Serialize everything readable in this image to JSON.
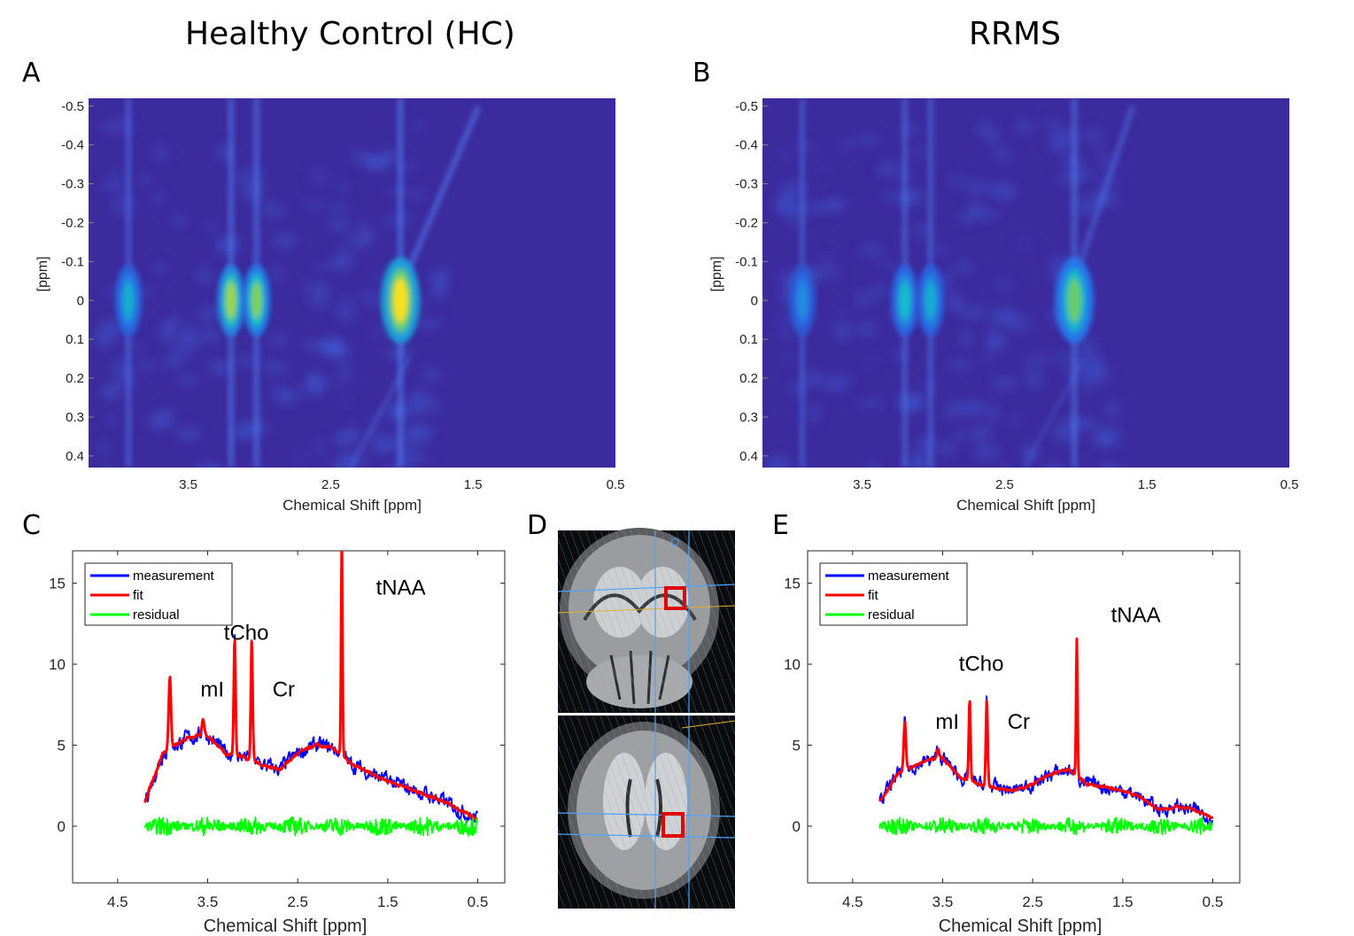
{
  "titles": {
    "left": "Healthy Control (HC)",
    "right": "RRMS"
  },
  "panels": {
    "a": "A",
    "b": "B",
    "c": "C",
    "d": "D",
    "e": "E"
  },
  "colors": {
    "map_bg": "#3c2b9d",
    "map_peak": "#f6e11c",
    "measurement": "#0000ff",
    "fit": "#ff0000",
    "residual": "#00ff00",
    "roi_box": "#e00000"
  },
  "brain_views": [
    "coronal-mri-icon",
    "axial-mri-icon"
  ],
  "chart_data": [
    {
      "type": "heatmap",
      "panel": "A",
      "xlabel": "Chemical Shift [ppm]",
      "ylabel": "[ppm]",
      "xlim": [
        4.2,
        0.5
      ],
      "ylim": [
        -0.52,
        0.43
      ],
      "xticks": [
        3.5,
        2.5,
        1.5,
        0.5
      ],
      "xtick_labels": [
        "3.5",
        "2.5",
        "1.5",
        "0.5"
      ],
      "yticks": [
        -0.5,
        -0.4,
        -0.3,
        -0.2,
        -0.1,
        0,
        0.1,
        0.2,
        0.3,
        0.4
      ],
      "ytick_labels": [
        "-0.5",
        "-0.4",
        "-0.3",
        "-0.2",
        "-0.1",
        "0",
        "0.1",
        "0.2",
        "0.3",
        "0.4"
      ],
      "peaks": [
        {
          "x": 3.92,
          "intensity": 0.55
        },
        {
          "x": 3.2,
          "intensity": 0.85
        },
        {
          "x": 3.02,
          "intensity": 0.8
        },
        {
          "x": 2.01,
          "intensity": 1.0
        }
      ]
    },
    {
      "type": "heatmap",
      "panel": "B",
      "xlabel": "Chemical Shift [ppm]",
      "ylabel": "[ppm]",
      "xlim": [
        4.2,
        0.5
      ],
      "ylim": [
        -0.52,
        0.43
      ],
      "xticks": [
        3.5,
        2.5,
        1.5,
        0.5
      ],
      "xtick_labels": [
        "3.5",
        "2.5",
        "1.5",
        "0.5"
      ],
      "yticks": [
        -0.5,
        -0.4,
        -0.3,
        -0.2,
        -0.1,
        0,
        0.1,
        0.2,
        0.3,
        0.4
      ],
      "ytick_labels": [
        "-0.5",
        "-0.4",
        "-0.3",
        "-0.2",
        "-0.1",
        "0",
        "0.1",
        "0.2",
        "0.3",
        "0.4"
      ],
      "peaks": [
        {
          "x": 3.92,
          "intensity": 0.45
        },
        {
          "x": 3.2,
          "intensity": 0.6
        },
        {
          "x": 3.02,
          "intensity": 0.55
        },
        {
          "x": 2.01,
          "intensity": 0.75
        }
      ]
    },
    {
      "type": "line",
      "panel": "C",
      "xlabel": "Chemical Shift [ppm]",
      "xlim": [
        5.0,
        0.2
      ],
      "ylim": [
        -3.5,
        17
      ],
      "xticks": [
        4.5,
        3.5,
        2.5,
        1.5,
        0.5
      ],
      "xtick_labels": [
        "4.5",
        "3.5",
        "2.5",
        "1.5",
        "0.5"
      ],
      "yticks": [
        0,
        5,
        10,
        15
      ],
      "ytick_labels": [
        "0",
        "5",
        "10",
        "15"
      ],
      "legend": [
        "measurement",
        "fit",
        "residual"
      ],
      "legend_loc": "top-left",
      "annotations": [
        {
          "text": "mI",
          "x": 3.58,
          "y": 8.0
        },
        {
          "text": "tCho",
          "x": 3.32,
          "y": 11.5
        },
        {
          "text": "Cr",
          "x": 2.78,
          "y": 8.0
        },
        {
          "text": "tNAA",
          "x": 1.63,
          "y": 14.3
        }
      ],
      "baseline": [
        [
          4.2,
          1.5
        ],
        [
          4.0,
          4.5
        ],
        [
          3.7,
          5.5
        ],
        [
          3.5,
          5.6
        ],
        [
          3.3,
          4.5
        ],
        [
          3.1,
          4.3
        ],
        [
          2.9,
          3.8
        ],
        [
          2.7,
          3.5
        ],
        [
          2.5,
          4.5
        ],
        [
          2.3,
          5.0
        ],
        [
          2.1,
          4.8
        ],
        [
          1.9,
          3.8
        ],
        [
          1.7,
          3.3
        ],
        [
          1.5,
          2.8
        ],
        [
          1.3,
          2.4
        ],
        [
          1.1,
          2.0
        ],
        [
          0.9,
          1.6
        ],
        [
          0.7,
          1.0
        ],
        [
          0.5,
          0.4
        ]
      ],
      "peaks": [
        {
          "x": 3.92,
          "height": 4.5,
          "width": 0.018
        },
        {
          "x": 3.55,
          "height": 1.0,
          "width": 0.02
        },
        {
          "x": 3.2,
          "height": 7.2,
          "width": 0.014
        },
        {
          "x": 3.01,
          "height": 7.5,
          "width": 0.014
        },
        {
          "x": 2.01,
          "height": 13.4,
          "width": 0.011
        }
      ],
      "series": [
        {
          "name": "measurement",
          "noise": 0.55
        },
        {
          "name": "fit",
          "noise": 0.18
        },
        {
          "name": "residual",
          "noise": 0.5
        }
      ]
    },
    {
      "type": "line",
      "panel": "E",
      "xlabel": "Chemical Shift [ppm]",
      "xlim": [
        5.0,
        0.2
      ],
      "ylim": [
        -3.5,
        17
      ],
      "xticks": [
        4.5,
        3.5,
        2.5,
        1.5,
        0.5
      ],
      "xtick_labels": [
        "4.5",
        "3.5",
        "2.5",
        "1.5",
        "0.5"
      ],
      "yticks": [
        0,
        5,
        10,
        15
      ],
      "ytick_labels": [
        "0",
        "5",
        "10",
        "15"
      ],
      "legend": [
        "measurement",
        "fit",
        "residual"
      ],
      "legend_loc": "top-left",
      "annotations": [
        {
          "text": "mI",
          "x": 3.58,
          "y": 6.0
        },
        {
          "text": "tCho",
          "x": 3.32,
          "y": 9.6
        },
        {
          "text": "Cr",
          "x": 2.78,
          "y": 6.0
        },
        {
          "text": "tNAA",
          "x": 1.63,
          "y": 12.6
        }
      ],
      "baseline": [
        [
          4.2,
          1.5
        ],
        [
          4.0,
          3.2
        ],
        [
          3.7,
          4.0
        ],
        [
          3.5,
          4.2
        ],
        [
          3.3,
          3.0
        ],
        [
          3.1,
          2.6
        ],
        [
          2.9,
          2.4
        ],
        [
          2.7,
          2.2
        ],
        [
          2.5,
          2.6
        ],
        [
          2.3,
          3.2
        ],
        [
          2.1,
          3.5
        ],
        [
          1.9,
          2.6
        ],
        [
          1.7,
          2.4
        ],
        [
          1.5,
          2.2
        ],
        [
          1.3,
          1.8
        ],
        [
          1.1,
          1.0
        ],
        [
          0.9,
          1.2
        ],
        [
          0.7,
          1.0
        ],
        [
          0.5,
          0.5
        ]
      ],
      "peaks": [
        {
          "x": 3.92,
          "height": 3.0,
          "width": 0.018
        },
        {
          "x": 3.55,
          "height": 0.6,
          "width": 0.02
        },
        {
          "x": 3.2,
          "height": 5.0,
          "width": 0.014
        },
        {
          "x": 3.01,
          "height": 5.3,
          "width": 0.014
        },
        {
          "x": 2.01,
          "height": 8.4,
          "width": 0.011
        }
      ],
      "series": [
        {
          "name": "measurement",
          "noise": 0.5
        },
        {
          "name": "fit",
          "noise": 0.15
        },
        {
          "name": "residual",
          "noise": 0.45
        }
      ]
    }
  ]
}
